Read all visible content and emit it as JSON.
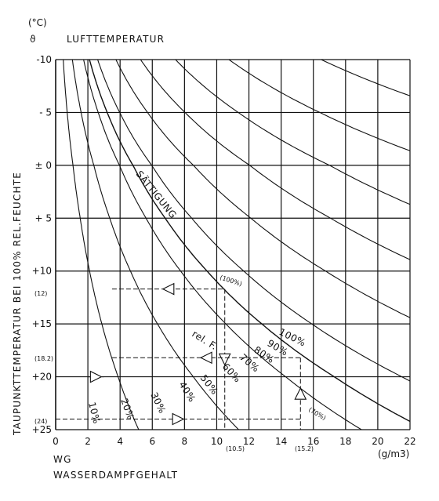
{
  "chart_data": {
    "type": "line",
    "unit_top": "(°C)",
    "symbol_top": "ϑ",
    "top_label": "LUFTTEMPERATUR",
    "ylabel": "TAUPUNKTTEMPERATUR BEI 100% REL.FEUCHTE",
    "xlabel_short": "WG",
    "xlabel": "WASSERDAMPFGEHALT",
    "xunit": "(g/m3)",
    "xlim": [
      0,
      22
    ],
    "ylim": [
      -10,
      25
    ],
    "x_ticks": [
      0,
      2,
      4,
      6,
      8,
      10,
      12,
      14,
      16,
      18,
      20,
      22
    ],
    "y_ticks": [
      {
        "value": -10,
        "label": "-10"
      },
      {
        "value": -5,
        "label": "- 5"
      },
      {
        "value": 0,
        "label": "± 0"
      },
      {
        "value": 5,
        "label": "+ 5"
      },
      {
        "value": 10,
        "label": "+10"
      },
      {
        "value": 15,
        "label": "+15"
      },
      {
        "value": 20,
        "label": "+20"
      },
      {
        "value": 25,
        "label": "+25"
      }
    ],
    "saturation_label": "SÄTTIGUNG",
    "rel_label": "rel. F.",
    "saturation_curve": {
      "temps": [
        -10,
        -5,
        0,
        5,
        10,
        15,
        20,
        25
      ],
      "wg": [
        2.1,
        3.2,
        4.8,
        6.8,
        9.4,
        12.8,
        17.3,
        23.0
      ]
    },
    "series": [
      {
        "label": "100%",
        "fraction": 1.0
      },
      {
        "label": "90%",
        "fraction": 0.9
      },
      {
        "label": "80%",
        "fraction": 0.8
      },
      {
        "label": "70%",
        "fraction": 0.7
      },
      {
        "label": "60%",
        "fraction": 0.6
      },
      {
        "label": "50%",
        "fraction": 0.5
      },
      {
        "label": "40%",
        "fraction": 0.4
      },
      {
        "label": "30%",
        "fraction": 0.3
      },
      {
        "label": "20%",
        "fraction": 0.2
      },
      {
        "label": "10%",
        "fraction": 0.1
      }
    ],
    "annotations": [
      {
        "text": "(100%)"
      },
      {
        "text": "(12)"
      },
      {
        "text": "(18.2)"
      },
      {
        "text": "(24)"
      },
      {
        "text": "(10.5)"
      },
      {
        "text": "(15.2)"
      },
      {
        "text": "(70%)"
      }
    ],
    "example_lines": [
      {
        "from": [
          3.5,
          11.7
        ],
        "to": [
          10.5,
          11.7
        ],
        "arrow": "left"
      },
      {
        "from": [
          10.5,
          11.7
        ],
        "to": [
          10.5,
          25
        ],
        "arrow": "down"
      },
      {
        "from": [
          3.5,
          18.2
        ],
        "to": [
          15.2,
          18.2
        ],
        "arrow": "left"
      },
      {
        "from": [
          15.2,
          18.2
        ],
        "to": [
          15.2,
          25
        ],
        "arrow": "up"
      },
      {
        "from": [
          2.0,
          20.0
        ],
        "to": [
          3.0,
          20.0
        ],
        "arrow": "right"
      },
      {
        "from": [
          0,
          24.0
        ],
        "to": [
          15.2,
          24.0
        ],
        "arrow": "right"
      }
    ]
  }
}
